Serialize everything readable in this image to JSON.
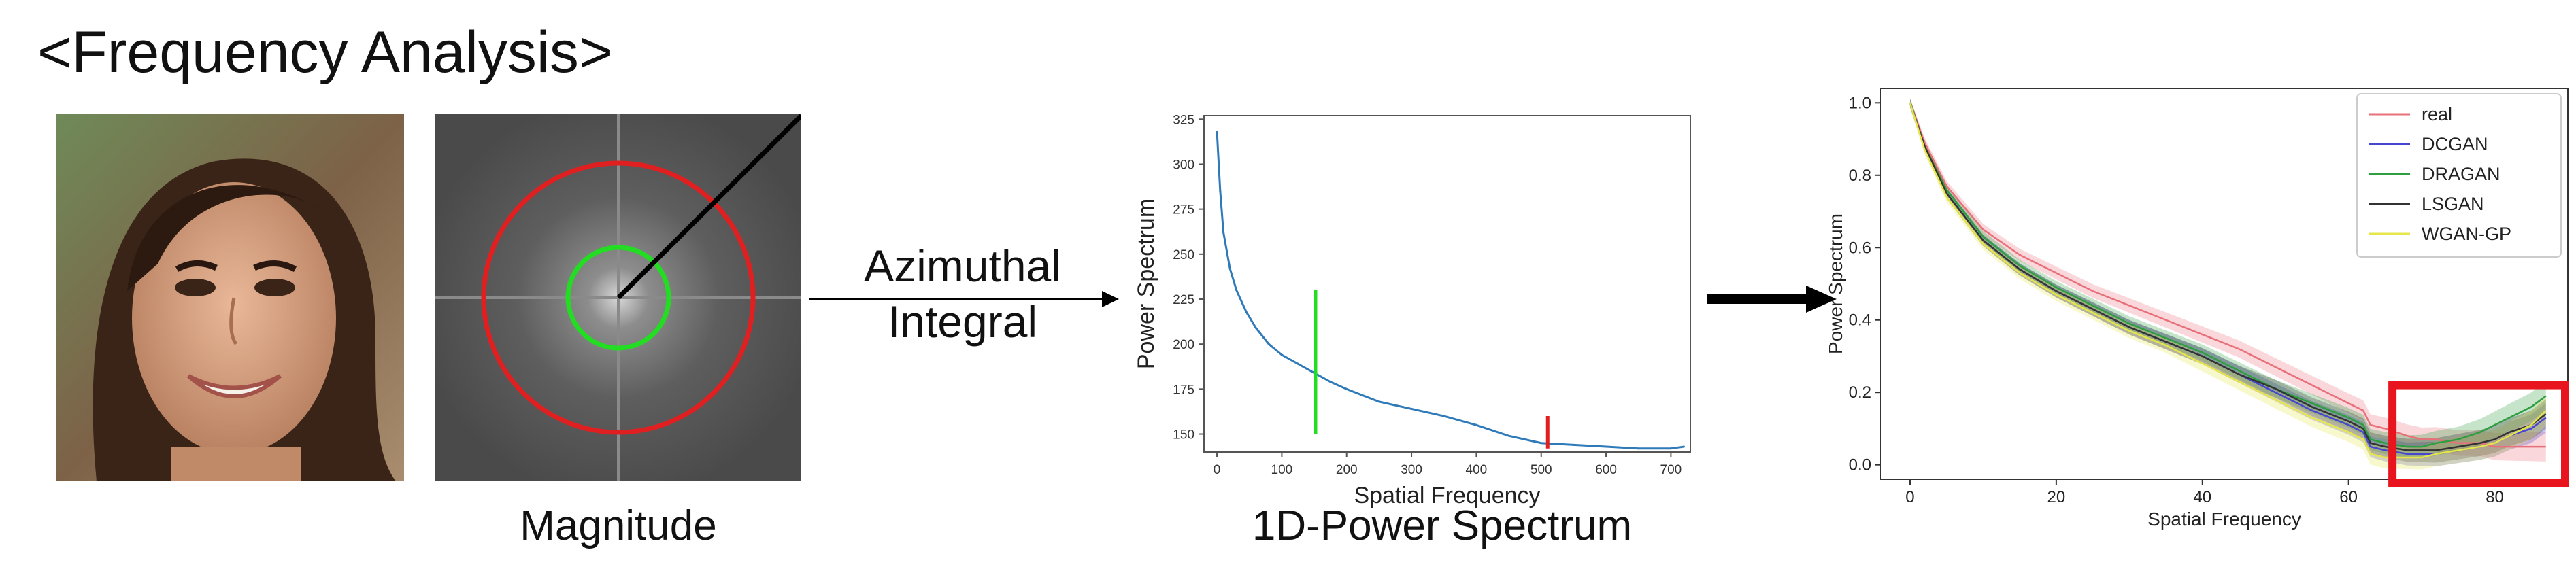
{
  "title": "<Frequency Analysis>",
  "captions": {
    "magnitude": "Magnitude",
    "power_spectrum": "1D-Power Spectrum"
  },
  "arrow_label": {
    "line1": "Azimuthal",
    "line2": "Integral"
  },
  "colors": {
    "outer_circle": "#e02020",
    "inner_circle": "#22dd22",
    "spectrum_line": "#2f7ab8",
    "highlight_box": "#e8141e"
  },
  "chart_data": [
    {
      "type": "line",
      "xlabel": "Spatial Frequency",
      "ylabel": "Power Spectrum",
      "xlim": [
        -20,
        730
      ],
      "ylim": [
        140,
        327
      ],
      "xticks": [
        0,
        100,
        200,
        300,
        400,
        500,
        600,
        700
      ],
      "yticks": [
        150,
        175,
        200,
        225,
        250,
        275,
        300,
        325
      ],
      "series": [
        {
          "x": [
            0,
            5,
            10,
            20,
            30,
            45,
            60,
            80,
            100,
            125,
            150,
            175,
            200,
            250,
            300,
            350,
            400,
            450,
            500,
            550,
            600,
            650,
            700,
            720
          ],
          "values": [
            318,
            285,
            262,
            242,
            230,
            218,
            209,
            200,
            194,
            189,
            184,
            179,
            175,
            168,
            164,
            160,
            155,
            149,
            145,
            144,
            143,
            142,
            142,
            143
          ]
        }
      ],
      "markers": [
        {
          "x": 152,
          "y_from": 150,
          "y_to": 230,
          "color": "#22dd22"
        },
        {
          "x": 510,
          "y_from": 142,
          "y_to": 160,
          "color": "#e02020"
        }
      ]
    },
    {
      "type": "line",
      "xlabel": "Spatial Frequency",
      "ylabel": "Power Spectrum",
      "xlim": [
        -4,
        90
      ],
      "ylim": [
        -0.04,
        1.04
      ],
      "xticks": [
        0,
        20,
        40,
        60,
        80
      ],
      "yticks": [
        0.0,
        0.2,
        0.4,
        0.6,
        0.8,
        1.0
      ],
      "x": [
        0,
        2,
        5,
        10,
        15,
        20,
        25,
        30,
        35,
        40,
        45,
        50,
        55,
        60,
        62,
        63,
        65,
        68,
        70,
        72,
        75,
        78,
        80,
        82,
        85,
        87
      ],
      "series": [
        {
          "name": "real",
          "color": "#e8707a",
          "values": [
            1.0,
            0.89,
            0.77,
            0.65,
            0.58,
            0.53,
            0.48,
            0.44,
            0.4,
            0.36,
            0.32,
            0.27,
            0.22,
            0.17,
            0.15,
            0.11,
            0.1,
            0.08,
            0.07,
            0.07,
            0.06,
            0.06,
            0.05,
            0.05,
            0.05,
            0.05
          ]
        },
        {
          "name": "DCGAN",
          "color": "#4646d0",
          "values": [
            1.0,
            0.88,
            0.75,
            0.62,
            0.54,
            0.48,
            0.43,
            0.38,
            0.34,
            0.3,
            0.25,
            0.2,
            0.15,
            0.11,
            0.09,
            0.05,
            0.04,
            0.03,
            0.03,
            0.03,
            0.04,
            0.05,
            0.06,
            0.08,
            0.1,
            0.13
          ]
        },
        {
          "name": "DRAGAN",
          "color": "#2e9e40",
          "values": [
            1.0,
            0.88,
            0.76,
            0.63,
            0.55,
            0.49,
            0.44,
            0.39,
            0.35,
            0.31,
            0.26,
            0.21,
            0.17,
            0.13,
            0.11,
            0.07,
            0.06,
            0.05,
            0.05,
            0.06,
            0.07,
            0.09,
            0.11,
            0.13,
            0.16,
            0.19
          ]
        },
        {
          "name": "LSGAN",
          "color": "#333333",
          "values": [
            1.0,
            0.88,
            0.75,
            0.62,
            0.54,
            0.48,
            0.43,
            0.38,
            0.34,
            0.3,
            0.25,
            0.21,
            0.16,
            0.12,
            0.1,
            0.06,
            0.05,
            0.04,
            0.04,
            0.04,
            0.05,
            0.06,
            0.07,
            0.09,
            0.11,
            0.14
          ]
        },
        {
          "name": "WGAN-GP",
          "color": "#e6e64a",
          "values": [
            1.0,
            0.87,
            0.74,
            0.61,
            0.53,
            0.47,
            0.42,
            0.37,
            0.33,
            0.28,
            0.23,
            0.18,
            0.13,
            0.09,
            0.07,
            0.03,
            0.02,
            0.02,
            0.02,
            0.03,
            0.04,
            0.05,
            0.06,
            0.08,
            0.11,
            0.15
          ]
        }
      ],
      "legend": "top-right",
      "highlight": {
        "x": [
          66,
          90
        ],
        "y": [
          -0.04,
          0.22
        ]
      }
    }
  ]
}
